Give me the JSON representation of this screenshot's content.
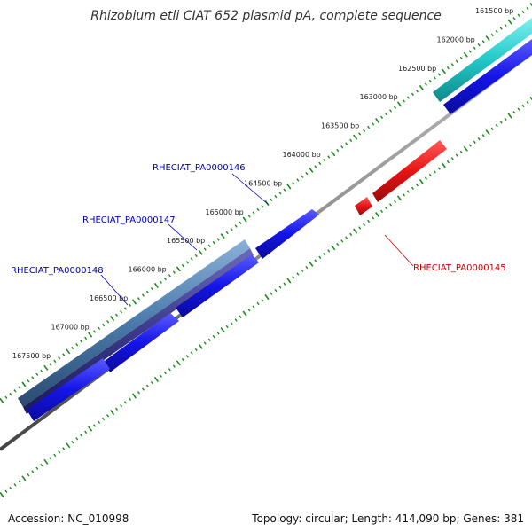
{
  "title": "Rhizobium etli CIAT 652 plasmid pA, complete sequence",
  "tick_labels": [
    "161500 bp",
    "162000 bp",
    "162500 bp",
    "163000 bp",
    "163500 bp",
    "164000 bp",
    "164500 bp",
    "165000 bp",
    "165500 bp",
    "166000 bp",
    "166500 bp",
    "167000 bp",
    "167500 bp"
  ],
  "genes": [
    {
      "label": "RHECIAT_PA0000145",
      "strand": "reverse",
      "color": "#dd0000"
    },
    {
      "label": "RHECIAT_PA0000146",
      "strand": "forward",
      "color": "#0000dd"
    },
    {
      "label": "RHECIAT_PA0000147",
      "strand": "forward",
      "color": "#0000dd"
    },
    {
      "label": "RHECIAT_PA0000148",
      "strand": "forward",
      "color": "#0000dd"
    }
  ],
  "feature_colors": {
    "forward_cds": "#1a1aee",
    "reverse_cds": "#ee1111",
    "forward_feature_a": "#22c8c8",
    "forward_feature_b": "#4a7aaa",
    "forward_feature_c": "#3a3a88",
    "backbone": "#888888",
    "tick": "#1a8a1a"
  },
  "footer": {
    "accession": "Accession: NC_010998",
    "summary": "Topology: circular; Length: 414,090 bp; Genes: 381"
  }
}
